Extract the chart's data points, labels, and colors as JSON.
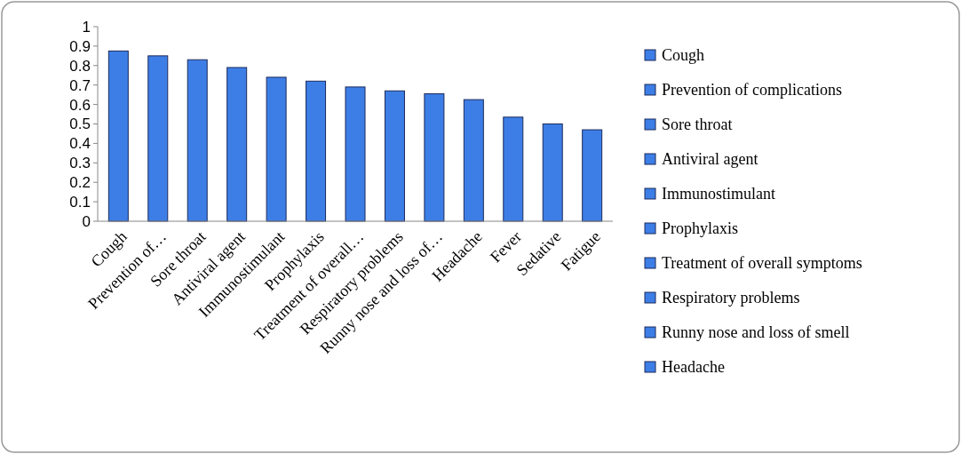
{
  "chart_data": {
    "type": "bar",
    "stacked": true,
    "legend": "right",
    "categories": [
      "Cough",
      "Prevention of…",
      "Sore throat",
      "Antiviral agent",
      "Immunostimulant",
      "Prophylaxis",
      "Treatment of overall…",
      "Respiratory problems",
      "Runny nose and loss of…",
      "Headache",
      "Fever",
      "Sedative",
      "Fatigue"
    ],
    "series": [
      {
        "name": "Cough",
        "color": "#3d7ee6",
        "values": [
          0.875,
          null,
          null,
          null,
          null,
          null,
          null,
          null,
          null,
          null,
          null,
          null,
          null
        ]
      },
      {
        "name": "Prevention of complications",
        "color": "#3d7ee6",
        "values": [
          null,
          0.85,
          null,
          null,
          null,
          null,
          null,
          null,
          null,
          null,
          null,
          null,
          null
        ]
      },
      {
        "name": "Sore throat",
        "color": "#3d7ee6",
        "values": [
          null,
          null,
          0.83,
          null,
          null,
          null,
          null,
          null,
          null,
          null,
          null,
          null,
          null
        ]
      },
      {
        "name": "Antiviral agent",
        "color": "#3d7ee6",
        "values": [
          null,
          null,
          null,
          0.79,
          null,
          null,
          null,
          null,
          null,
          null,
          null,
          null,
          null
        ]
      },
      {
        "name": "Immunostimulant",
        "color": "#3d7ee6",
        "values": [
          null,
          null,
          null,
          null,
          0.74,
          null,
          null,
          null,
          null,
          null,
          null,
          null,
          null
        ]
      },
      {
        "name": "Prophylaxis",
        "color": "#3d7ee6",
        "values": [
          null,
          null,
          null,
          null,
          null,
          0.72,
          null,
          null,
          null,
          null,
          null,
          null,
          null
        ]
      },
      {
        "name": "Treatment of overall symptoms",
        "color": "#3d7ee6",
        "values": [
          null,
          null,
          null,
          null,
          null,
          null,
          0.69,
          null,
          null,
          null,
          null,
          null,
          null
        ]
      },
      {
        "name": "Respiratory problems",
        "color": "#3d7ee6",
        "values": [
          null,
          null,
          null,
          null,
          null,
          null,
          null,
          0.67,
          null,
          null,
          null,
          null,
          null
        ]
      },
      {
        "name": "Runny nose and loss of smell",
        "color": "#3d7ee6",
        "values": [
          null,
          null,
          null,
          null,
          null,
          null,
          null,
          null,
          0.655,
          null,
          null,
          null,
          null
        ]
      },
      {
        "name": "Headache",
        "color": "#3d7ee6",
        "values": [
          null,
          null,
          null,
          null,
          null,
          null,
          null,
          null,
          null,
          0.625,
          null,
          null,
          null
        ]
      },
      {
        "color": "#3d7ee6",
        "values": [
          null,
          null,
          null,
          null,
          null,
          null,
          null,
          null,
          null,
          null,
          0.535,
          null,
          null
        ]
      },
      {
        "color": "#3d7ee6",
        "values": [
          null,
          null,
          null,
          null,
          null,
          null,
          null,
          null,
          null,
          null,
          null,
          0.5,
          null
        ]
      },
      {
        "color": "#3d7ee6",
        "values": [
          null,
          null,
          null,
          null,
          null,
          null,
          null,
          null,
          null,
          null,
          null,
          null,
          0.47
        ]
      }
    ],
    "ylim": [
      0,
      1
    ],
    "yticks": [
      0,
      0.1,
      0.2,
      0.3,
      0.4,
      0.5,
      0.6,
      0.7,
      0.8,
      0.9,
      1
    ]
  }
}
